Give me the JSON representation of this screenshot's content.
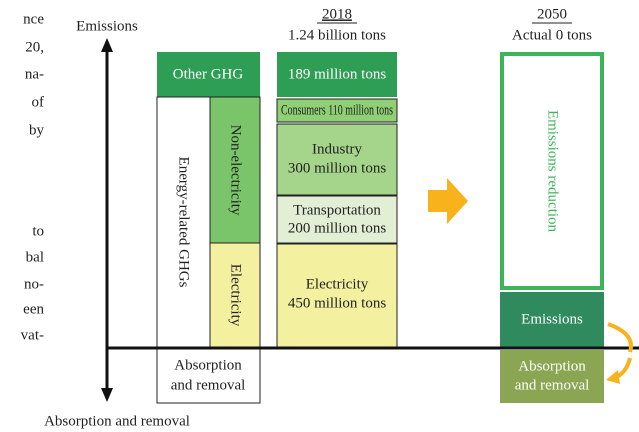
{
  "side_text": [
    "nce",
    "20,",
    "na-",
    "of",
    "by",
    "to",
    "bal",
    "no-",
    "een",
    "vat-"
  ],
  "axis": {
    "top": "Emissions",
    "bottom": "Absorption and removal"
  },
  "col1": {
    "other": "Other GHG",
    "energy": "Energy-related GHGs",
    "nonelec": "Non-electricity",
    "elec": "Electricity",
    "absorb": [
      "Absorption",
      "and removal"
    ]
  },
  "col2": {
    "year": "2018",
    "total": "1.24 billion tons",
    "other": "189 million tons",
    "consumers": "Consumers 110 million tons",
    "industry": [
      "Industry",
      "300 million tons"
    ],
    "transport": [
      "Transportation",
      "200 million tons"
    ],
    "elec": [
      "Electricity",
      "450 million tons"
    ]
  },
  "col3": {
    "year": "2050",
    "total": "Actual 0 tons",
    "reduction": "Emissions reduction",
    "emissions": "Emissions",
    "absorb": [
      "Absorption",
      "and removal"
    ]
  }
}
